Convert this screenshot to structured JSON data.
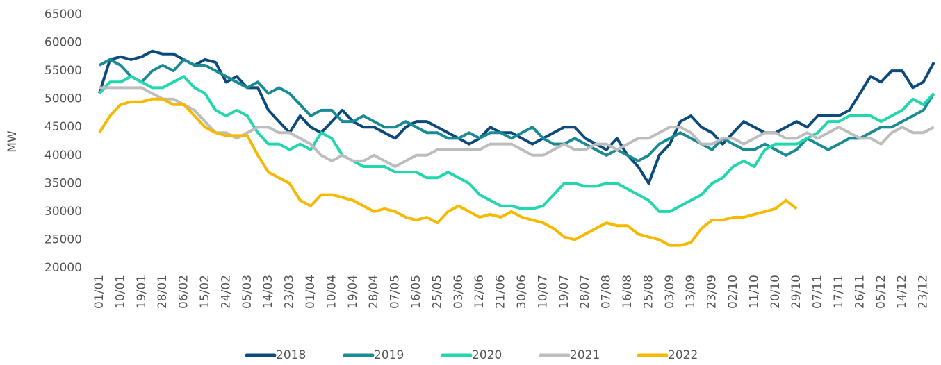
{
  "chart_data": {
    "type": "line",
    "y_label": "MW",
    "categories": [
      "01/01",
      null,
      "10/01",
      null,
      "19/01",
      null,
      "28/01",
      null,
      "06/02",
      null,
      "15/02",
      null,
      "24/02",
      null,
      "05/03",
      null,
      "14/03",
      null,
      "23/03",
      null,
      "01/04",
      null,
      "10/04",
      null,
      "19/04",
      null,
      "28/04",
      null,
      "07/05",
      null,
      "16/05",
      null,
      "25/05",
      null,
      "03/06",
      null,
      "12/06",
      null,
      "21/06",
      null,
      "30/06",
      null,
      "10/07",
      null,
      "19/07",
      null,
      "28/07",
      null,
      "07/08",
      null,
      "16/08",
      null,
      "25/08",
      null,
      "03/09",
      null,
      "13/09",
      null,
      "23/09",
      null,
      "02/10",
      null,
      "11/10",
      null,
      "20/10",
      null,
      "29/10",
      null,
      "07/11",
      null,
      "17/11",
      null,
      "26/11",
      null,
      "05/12",
      null,
      "14/12",
      null,
      "23/12",
      null
    ],
    "series": [
      {
        "name": "2018",
        "color": "#0c4a7b",
        "values": [
          51000,
          57000,
          57500,
          57000,
          57500,
          58500,
          58000,
          58000,
          57000,
          56000,
          57000,
          56500,
          53000,
          54000,
          52000,
          52000,
          48000,
          46000,
          44000,
          47000,
          45000,
          44000,
          46000,
          48000,
          46000,
          45000,
          45000,
          44000,
          43000,
          45000,
          46000,
          46000,
          45000,
          44000,
          43000,
          42000,
          43000,
          45000,
          44000,
          44000,
          43000,
          42000,
          43000,
          44000,
          45000,
          45000,
          43000,
          42000,
          41000,
          43000,
          40000,
          38000,
          35000,
          40000,
          42000,
          46000,
          47000,
          45000,
          44000,
          42000,
          44000,
          46000,
          45000,
          44000,
          44000,
          45000,
          46000,
          45000,
          47000,
          47000,
          47000,
          48000,
          51000,
          54000,
          53000,
          55000,
          55000,
          52000,
          53000,
          56500
        ]
      },
      {
        "name": "2019",
        "color": "#1a8a94",
        "values": [
          56000,
          57000,
          56000,
          54000,
          53000,
          55000,
          56000,
          55000,
          57000,
          56000,
          56000,
          55000,
          54000,
          53000,
          52000,
          53000,
          51000,
          52000,
          51000,
          49000,
          47000,
          48000,
          48000,
          46000,
          46000,
          47000,
          46000,
          45000,
          45000,
          46000,
          45000,
          44000,
          44000,
          43000,
          43000,
          44000,
          43000,
          44000,
          44000,
          43000,
          44000,
          45000,
          43000,
          42000,
          42000,
          43000,
          42000,
          41000,
          40000,
          41000,
          40000,
          39000,
          40000,
          42000,
          43000,
          44000,
          43000,
          42000,
          41000,
          43000,
          42000,
          41000,
          41000,
          42000,
          41000,
          40000,
          41000,
          43000,
          42000,
          41000,
          42000,
          43000,
          43000,
          44000,
          45000,
          45000,
          46000,
          47000,
          48000,
          51000
        ]
      },
      {
        "name": "2020",
        "color": "#22d6ad",
        "values": [
          51000,
          53000,
          53000,
          54000,
          53000,
          52000,
          52000,
          53000,
          54000,
          52000,
          51000,
          48000,
          47000,
          48000,
          47000,
          44000,
          42000,
          42000,
          41000,
          42000,
          41000,
          44000,
          43000,
          40000,
          39000,
          38000,
          38000,
          38000,
          37000,
          37000,
          37000,
          36000,
          36000,
          37000,
          36000,
          35000,
          33000,
          32000,
          31000,
          31000,
          30500,
          30500,
          31000,
          33000,
          35000,
          35000,
          34500,
          34500,
          35000,
          35000,
          34000,
          33000,
          32000,
          30000,
          30000,
          31000,
          32000,
          33000,
          35000,
          36000,
          38000,
          39000,
          38000,
          41000,
          42000,
          42000,
          42000,
          43000,
          44000,
          46000,
          46000,
          47000,
          47000,
          47000,
          46000,
          47000,
          48000,
          50000,
          49000,
          51000
        ]
      },
      {
        "name": "2021",
        "color": "#bdbdbd",
        "values": [
          52000,
          52000,
          52000,
          52000,
          52000,
          51000,
          50000,
          50000,
          49000,
          48000,
          46000,
          44000,
          44000,
          43000,
          44000,
          45000,
          45000,
          44000,
          44000,
          43000,
          42000,
          40000,
          39000,
          40000,
          39000,
          39000,
          40000,
          39000,
          38000,
          39000,
          40000,
          40000,
          41000,
          41000,
          41000,
          41000,
          41000,
          42000,
          42000,
          42000,
          41000,
          40000,
          40000,
          41000,
          42000,
          41000,
          41000,
          42000,
          42000,
          41000,
          42000,
          43000,
          43000,
          44000,
          45000,
          45000,
          44000,
          42000,
          42000,
          43000,
          43000,
          42000,
          43000,
          44000,
          44000,
          43000,
          43000,
          44000,
          43000,
          44000,
          45000,
          44000,
          43000,
          43000,
          42000,
          44000,
          45000,
          44000,
          44000,
          45000
        ]
      },
      {
        "name": "2022",
        "color": "#f6b900",
        "values": [
          44000,
          47000,
          49000,
          49500,
          49500,
          50000,
          50000,
          49000,
          49000,
          47000,
          45000,
          44000,
          43500,
          43500,
          43500,
          40000,
          37000,
          36000,
          35000,
          32000,
          31000,
          33000,
          33000,
          32500,
          32000,
          31000,
          30000,
          30500,
          30000,
          29000,
          28500,
          29000,
          28000,
          30000,
          31000,
          30000,
          29000,
          29500,
          29000,
          30000,
          29000,
          28500,
          28000,
          27000,
          25500,
          25000,
          26000,
          27000,
          28000,
          27500,
          27500,
          26000,
          25500,
          25000,
          24000,
          24000,
          24500,
          27000,
          28500,
          28500,
          29000,
          29000,
          29500,
          30000,
          30500,
          32000,
          30500,
          null,
          null,
          null,
          null,
          null,
          null,
          null,
          null,
          null,
          null,
          null,
          null,
          null
        ]
      }
    ],
    "ylim": [
      20000,
      65000
    ],
    "yticks": [
      20000,
      25000,
      30000,
      35000,
      40000,
      45000,
      50000,
      55000,
      60000,
      65000
    ],
    "grid": false,
    "legend": "bottom"
  }
}
